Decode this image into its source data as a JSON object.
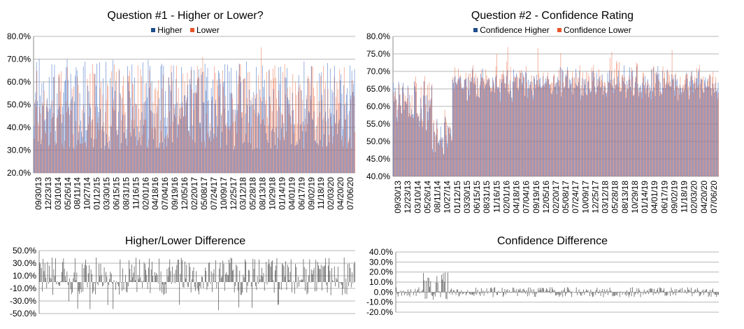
{
  "colors": {
    "higher": "#4472c4",
    "lower": "#ed7d5a",
    "diff": "#595959",
    "grid": "#b7b7b7",
    "axis": "#888888"
  },
  "chart_data": [
    {
      "id": "q1",
      "type": "bar",
      "title": "Question #1 - Higher or Lower?",
      "series": [
        {
          "name": "Higher",
          "color": "#4472c4"
        },
        {
          "name": "Lower",
          "color": "#ed7d5a"
        }
      ],
      "ylim": [
        0.2,
        0.8
      ],
      "yticks": [
        "20.0%",
        "30.0%",
        "40.0%",
        "50.0%",
        "60.0%",
        "70.0%",
        "80.0%"
      ],
      "xticks": [
        "09/30/13",
        "12/23/13",
        "03/10/14",
        "05/26/14",
        "08/11/14",
        "10/27/14",
        "01/12/15",
        "03/30/15",
        "06/15/15",
        "08/31/15",
        "11/16/15",
        "02/01/16",
        "04/18/16",
        "07/04/16",
        "09/19/16",
        "12/05/16",
        "02/20/17",
        "05/08/17",
        "07/24/17",
        "10/09/17",
        "12/25/17",
        "03/12/18",
        "05/28/18",
        "08/13/18",
        "10/29/18",
        "01/14/19",
        "04/01/19",
        "06/17/19",
        "09/02/19",
        "11/18/19",
        "02/03/20",
        "04/20/20",
        "07/06/20"
      ],
      "n_points": 357,
      "note": "weekly paired values; Higher and Lower roughly complementary around 50%",
      "legend": "top"
    },
    {
      "id": "q2",
      "type": "bar",
      "title": "Question #2 - Confidence Rating",
      "series": [
        {
          "name": "Confidence Higher",
          "color": "#4472c4"
        },
        {
          "name": "Confidence Lower",
          "color": "#ed7d5a"
        }
      ],
      "ylim": [
        0.4,
        0.8
      ],
      "yticks": [
        "40.0%",
        "45.0%",
        "50.0%",
        "55.0%",
        "60.0%",
        "65.0%",
        "70.0%",
        "75.0%",
        "80.0%"
      ],
      "xticks": [
        "09/30/13",
        "12/23/13",
        "03/10/14",
        "05/26/14",
        "08/11/14",
        "10/27/14",
        "01/12/15",
        "03/30/15",
        "06/15/15",
        "08/31/15",
        "11/16/15",
        "02/01/16",
        "04/18/16",
        "07/04/16",
        "09/19/16",
        "12/05/16",
        "02/20/17",
        "05/08/17",
        "07/24/17",
        "10/09/17",
        "12/25/17",
        "03/12/18",
        "05/28/18",
        "08/13/18",
        "10/29/18",
        "01/14/19",
        "04/01/19",
        "06/17/19",
        "09/02/19",
        "11/18/19",
        "02/03/20",
        "04/20/20",
        "07/06/20"
      ],
      "n_points": 357,
      "legend": "top"
    },
    {
      "id": "d1",
      "type": "bar",
      "title": "Higher/Lower Difference",
      "ylim": [
        -0.5,
        0.5
      ],
      "yticks": [
        "-50.0%",
        "-30.0%",
        "-10.0%",
        "10.0%",
        "30.0%",
        "50.0%"
      ],
      "n_points": 357
    },
    {
      "id": "d2",
      "type": "bar",
      "title": "Confidence Difference",
      "ylim": [
        -0.2,
        0.4
      ],
      "yticks": [
        "-20.0%",
        "-10.0%",
        "0.0%",
        "10.0%",
        "20.0%",
        "30.0%",
        "40.0%"
      ],
      "n_points": 357
    }
  ]
}
